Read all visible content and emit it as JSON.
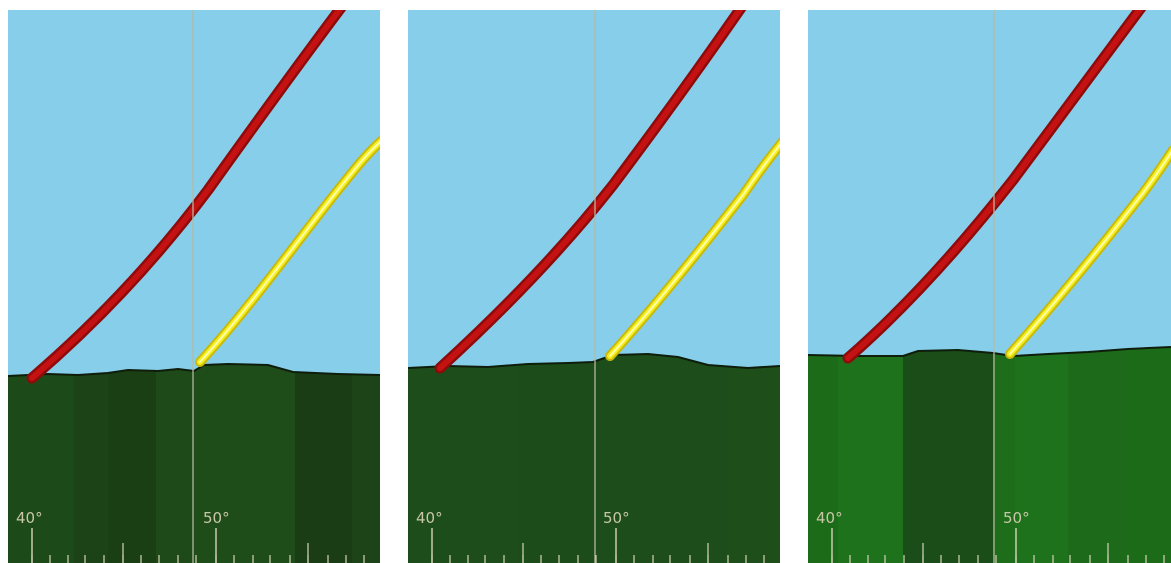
{
  "panels": [
    {
      "id": "panel-1",
      "ground_color": "#1f4d1a",
      "ground_shades": [
        "#1c4a18",
        "#1b4317",
        "#1a3f15",
        "#1d4a18",
        "#1f4d1a",
        "#1a3d16",
        "#1c4418"
      ],
      "tick_labels": [
        "40°",
        "50°"
      ]
    },
    {
      "id": "panel-2",
      "ground_color": "#1d4e1a",
      "ground_shades": [
        "#1d4d1a",
        "#1c4c19",
        "#1d4d1a",
        "#1e4e1a",
        "#1c4b19"
      ],
      "tick_labels": [
        "40°",
        "50°"
      ]
    },
    {
      "id": "panel-3",
      "ground_color": "#1e6f1b",
      "ground_shades": [
        "#1c6b19",
        "#1e721c",
        "#1a4d17",
        "#1d6d1a",
        "#1f721c",
        "#1c6a1a"
      ],
      "tick_labels": [
        "40°",
        "50°"
      ]
    }
  ],
  "colors": {
    "sky": "#87ceeb",
    "red_line": "#c41111",
    "yellow_line": "#f3ee1a",
    "center_line": "#b8b8a0",
    "tick": "#d6d4b8"
  }
}
